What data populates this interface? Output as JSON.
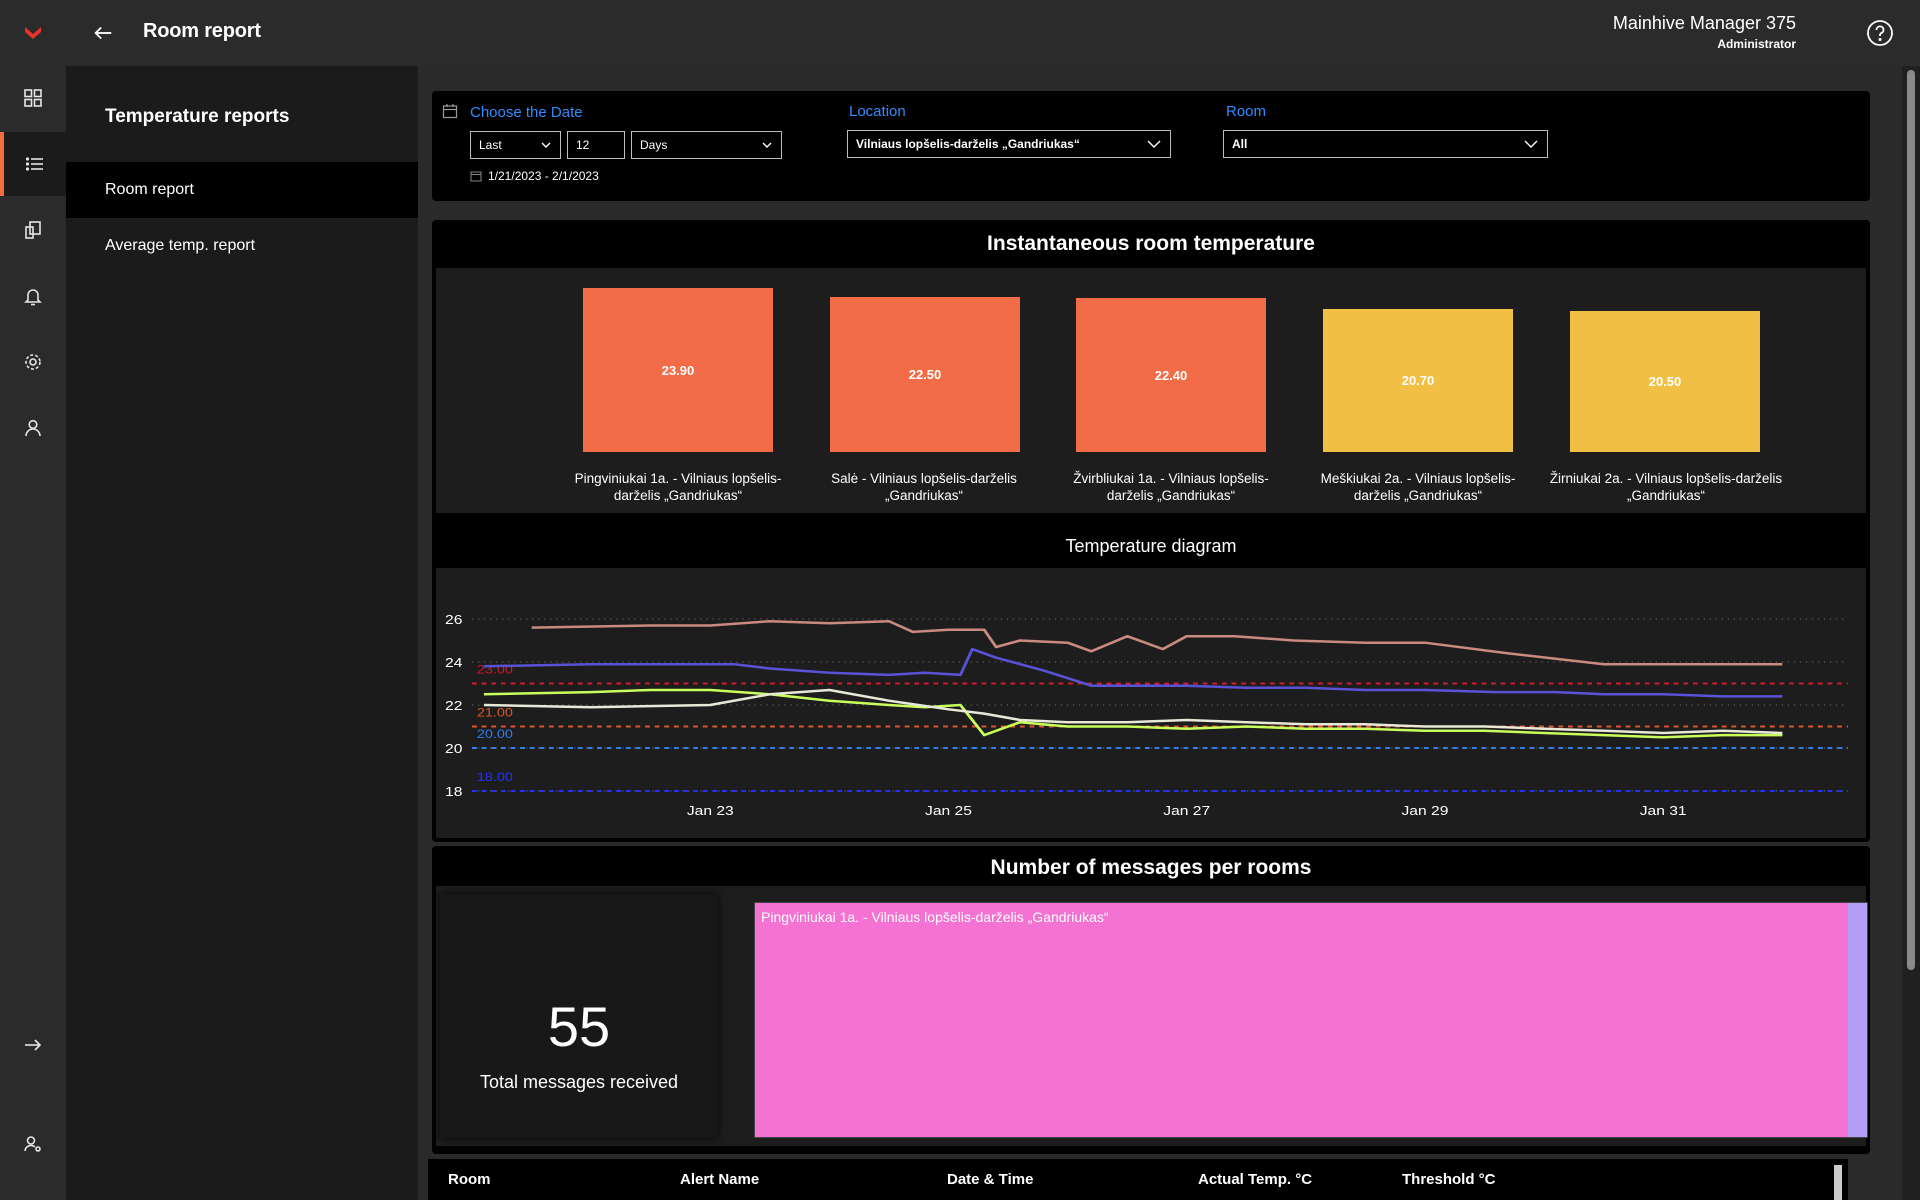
{
  "header": {
    "title": "Room report",
    "user_name": "Mainhive Manager 375",
    "user_role": "Administrator"
  },
  "sidebar": {
    "title": "Temperature reports",
    "items": [
      {
        "label": "Room report",
        "active": true
      },
      {
        "label": "Average temp. report",
        "active": false
      }
    ]
  },
  "rail": {
    "icons": [
      "logo-icon",
      "dashboard-icon",
      "list-icon",
      "devices-icon",
      "bell-icon",
      "gear-icon",
      "user-icon",
      "logout-arrow-icon",
      "user-settings-icon"
    ],
    "accent": "#f26d3d"
  },
  "filters": {
    "date_label": "Choose the Date",
    "period_mode": "Last",
    "period_count": "12",
    "period_unit": "Days",
    "date_range": "1/21/2023 - 2/1/2023",
    "location_label": "Location",
    "location_value": "Vilniaus lopšelis-darželis „Gandriukas“",
    "room_label": "Room",
    "room_value": "All"
  },
  "instant_panel": {
    "title": "Instantaneous room temperature",
    "tiles": [
      {
        "value": "23.90",
        "label": "Pingviniukai 1a. - Vilniaus lopšelis-darželis „Gandriukas“",
        "color": "#f26d47"
      },
      {
        "value": "22.50",
        "label": "Salė - Vilniaus lopšelis-darželis „Gandriukas“",
        "color": "#f26d47"
      },
      {
        "value": "22.40",
        "label": "Žvirbliukai 1a. - Vilniaus lopšelis-darželis „Gandriukas“",
        "color": "#f26d47"
      },
      {
        "value": "20.70",
        "label": "Meškiukai 2a. - Vilniaus lopšelis-darželis „Gandriukas“",
        "color": "#f2bf45"
      },
      {
        "value": "20.50",
        "label": "Žirniukai 2a. - Vilniaus lopšelis-darželis „Gandriukas“",
        "color": "#f2bf45"
      }
    ]
  },
  "chart_data": {
    "type": "line",
    "title": "Temperature diagram",
    "ylim": [
      18,
      26
    ],
    "yticks": [
      "26",
      "24",
      "22",
      "20",
      "18"
    ],
    "xticks": [
      "Jan 23",
      "Jan 25",
      "Jan 27",
      "Jan 29",
      "Jan 31"
    ],
    "thresholds": [
      {
        "value": 23,
        "label": "23.00",
        "color": "#d11a2a"
      },
      {
        "value": 21,
        "label": "21.00",
        "color": "#e0542a"
      },
      {
        "value": 20,
        "label": "20.00",
        "color": "#2f7ff0"
      },
      {
        "value": 18,
        "label": "18.00",
        "color": "#2230ff"
      }
    ],
    "series": [
      {
        "color": "#c98a80",
        "x": [
          21.5,
          22.5,
          23.0,
          23.5,
          24.0,
          24.5,
          24.7,
          25.0,
          25.3,
          25.4,
          25.6,
          26.0,
          26.2,
          26.5,
          26.8,
          27.0,
          27.4,
          27.9,
          28.5,
          29.0,
          29.7,
          30.5,
          31.0,
          31.5,
          32.0
        ],
        "y": [
          25.6,
          25.7,
          25.7,
          25.9,
          25.8,
          25.9,
          25.4,
          25.5,
          25.5,
          24.7,
          25.0,
          24.9,
          24.5,
          25.2,
          24.6,
          25.2,
          25.2,
          25.0,
          24.9,
          24.9,
          24.4,
          23.9,
          23.9,
          23.9,
          23.9
        ]
      },
      {
        "color": "#5a52d6",
        "x": [
          21.1,
          22.0,
          22.8,
          23.2,
          23.5,
          24.0,
          24.5,
          24.8,
          25.1,
          25.2,
          25.4,
          25.8,
          26.2,
          26.6,
          27.0,
          27.5,
          28.0,
          28.5,
          29.0,
          29.6,
          30.1,
          30.5,
          31.0,
          31.5,
          32.0
        ],
        "y": [
          23.8,
          23.9,
          23.9,
          23.9,
          23.7,
          23.5,
          23.4,
          23.5,
          23.4,
          24.6,
          24.2,
          23.6,
          22.9,
          22.9,
          22.9,
          22.8,
          22.8,
          22.7,
          22.7,
          22.6,
          22.6,
          22.5,
          22.5,
          22.4,
          22.4
        ]
      },
      {
        "color": "#c9ff5a",
        "x": [
          21.1,
          22.0,
          22.5,
          23.0,
          23.5,
          24.0,
          24.5,
          24.8,
          25.1,
          25.3,
          25.6,
          26.0,
          26.5,
          27.0,
          27.5,
          28.0,
          28.5,
          29.0,
          29.5,
          30.0,
          30.5,
          31.0,
          31.5,
          32.0
        ],
        "y": [
          22.5,
          22.6,
          22.7,
          22.7,
          22.5,
          22.2,
          22.0,
          21.9,
          22.0,
          20.6,
          21.2,
          21.0,
          21.0,
          20.9,
          21.0,
          20.9,
          20.9,
          20.8,
          20.8,
          20.7,
          20.6,
          20.5,
          20.6,
          20.6
        ]
      },
      {
        "color": "#e8e8d8",
        "x": [
          21.1,
          22.0,
          23.0,
          23.5,
          24.0,
          24.5,
          25.0,
          25.3,
          25.6,
          26.0,
          26.5,
          27.0,
          27.5,
          28.0,
          28.5,
          29.0,
          29.5,
          30.0,
          30.5,
          31.0,
          31.5,
          32.0
        ],
        "y": [
          22.0,
          21.9,
          22.0,
          22.5,
          22.7,
          22.2,
          21.8,
          21.6,
          21.3,
          21.2,
          21.2,
          21.3,
          21.2,
          21.1,
          21.1,
          21.0,
          21.0,
          20.9,
          20.8,
          20.7,
          20.8,
          20.7
        ]
      }
    ],
    "grid": true,
    "legend": "none"
  },
  "messages": {
    "title": "Number of messages per rooms",
    "total": "55",
    "total_label": "Total messages received",
    "treemap_label": "Pingviniukai 1a. - Vilniaus lopšelis-darželis „Gandriukas“"
  },
  "table": {
    "columns": [
      "Room",
      "Alert Name",
      "Date & Time",
      "Actual Temp. °C",
      "Threshold °C"
    ]
  }
}
